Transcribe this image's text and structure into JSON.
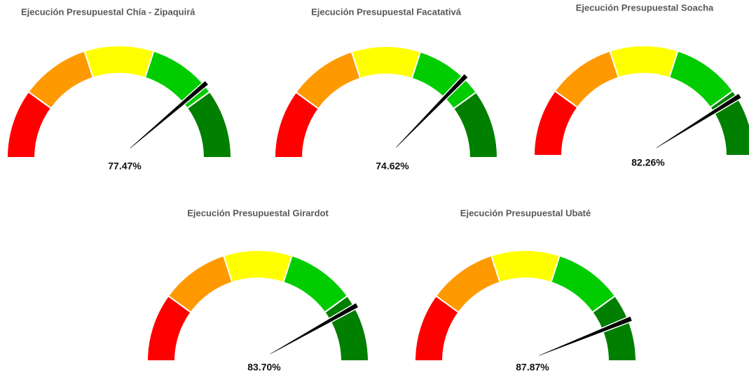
{
  "chart_data": [
    {
      "type": "gauge",
      "title": "Ejecución Presupuestal Chía - Zipaquirá",
      "value": 77.47,
      "value_label": "77.47%",
      "range": [
        0,
        100
      ],
      "bands": [
        {
          "from": 0,
          "to": 20,
          "color": "#ff0000"
        },
        {
          "from": 20,
          "to": 40,
          "color": "#ff9900"
        },
        {
          "from": 40,
          "to": 60,
          "color": "#ffff00"
        },
        {
          "from": 60,
          "to": 80,
          "color": "#00cc00"
        },
        {
          "from": 80,
          "to": 100,
          "color": "#007f00"
        }
      ],
      "needle_color": "#000000"
    },
    {
      "type": "gauge",
      "title": "Ejecución Presupuestal Facatativá",
      "value": 74.62,
      "value_label": "74.62%",
      "range": [
        0,
        100
      ],
      "bands": [
        {
          "from": 0,
          "to": 20,
          "color": "#ff0000"
        },
        {
          "from": 20,
          "to": 40,
          "color": "#ff9900"
        },
        {
          "from": 40,
          "to": 60,
          "color": "#ffff00"
        },
        {
          "from": 60,
          "to": 80,
          "color": "#00cc00"
        },
        {
          "from": 80,
          "to": 100,
          "color": "#007f00"
        }
      ],
      "needle_color": "#000000"
    },
    {
      "type": "gauge",
      "title": "Ejecución Presupuestal Soacha",
      "value": 82.26,
      "value_label": "82.26%",
      "range": [
        0,
        100
      ],
      "bands": [
        {
          "from": 0,
          "to": 20,
          "color": "#ff0000"
        },
        {
          "from": 20,
          "to": 40,
          "color": "#ff9900"
        },
        {
          "from": 40,
          "to": 60,
          "color": "#ffff00"
        },
        {
          "from": 60,
          "to": 80,
          "color": "#00cc00"
        },
        {
          "from": 80,
          "to": 100,
          "color": "#007f00"
        }
      ],
      "needle_color": "#000000"
    },
    {
      "type": "gauge",
      "title": "Ejecución Presupuestal Girardot",
      "value": 83.7,
      "value_label": "83.70%",
      "range": [
        0,
        100
      ],
      "bands": [
        {
          "from": 0,
          "to": 20,
          "color": "#ff0000"
        },
        {
          "from": 20,
          "to": 40,
          "color": "#ff9900"
        },
        {
          "from": 40,
          "to": 60,
          "color": "#ffff00"
        },
        {
          "from": 60,
          "to": 80,
          "color": "#00cc00"
        },
        {
          "from": 80,
          "to": 100,
          "color": "#007f00"
        }
      ],
      "needle_color": "#000000"
    },
    {
      "type": "gauge",
      "title": "Ejecución Presupuestal Ubaté",
      "value": 87.87,
      "value_label": "87.87%",
      "range": [
        0,
        100
      ],
      "bands": [
        {
          "from": 0,
          "to": 20,
          "color": "#ff0000"
        },
        {
          "from": 20,
          "to": 40,
          "color": "#ff9900"
        },
        {
          "from": 40,
          "to": 60,
          "color": "#ffff00"
        },
        {
          "from": 60,
          "to": 80,
          "color": "#00cc00"
        },
        {
          "from": 80,
          "to": 100,
          "color": "#007f00"
        }
      ],
      "needle_color": "#000000"
    }
  ]
}
